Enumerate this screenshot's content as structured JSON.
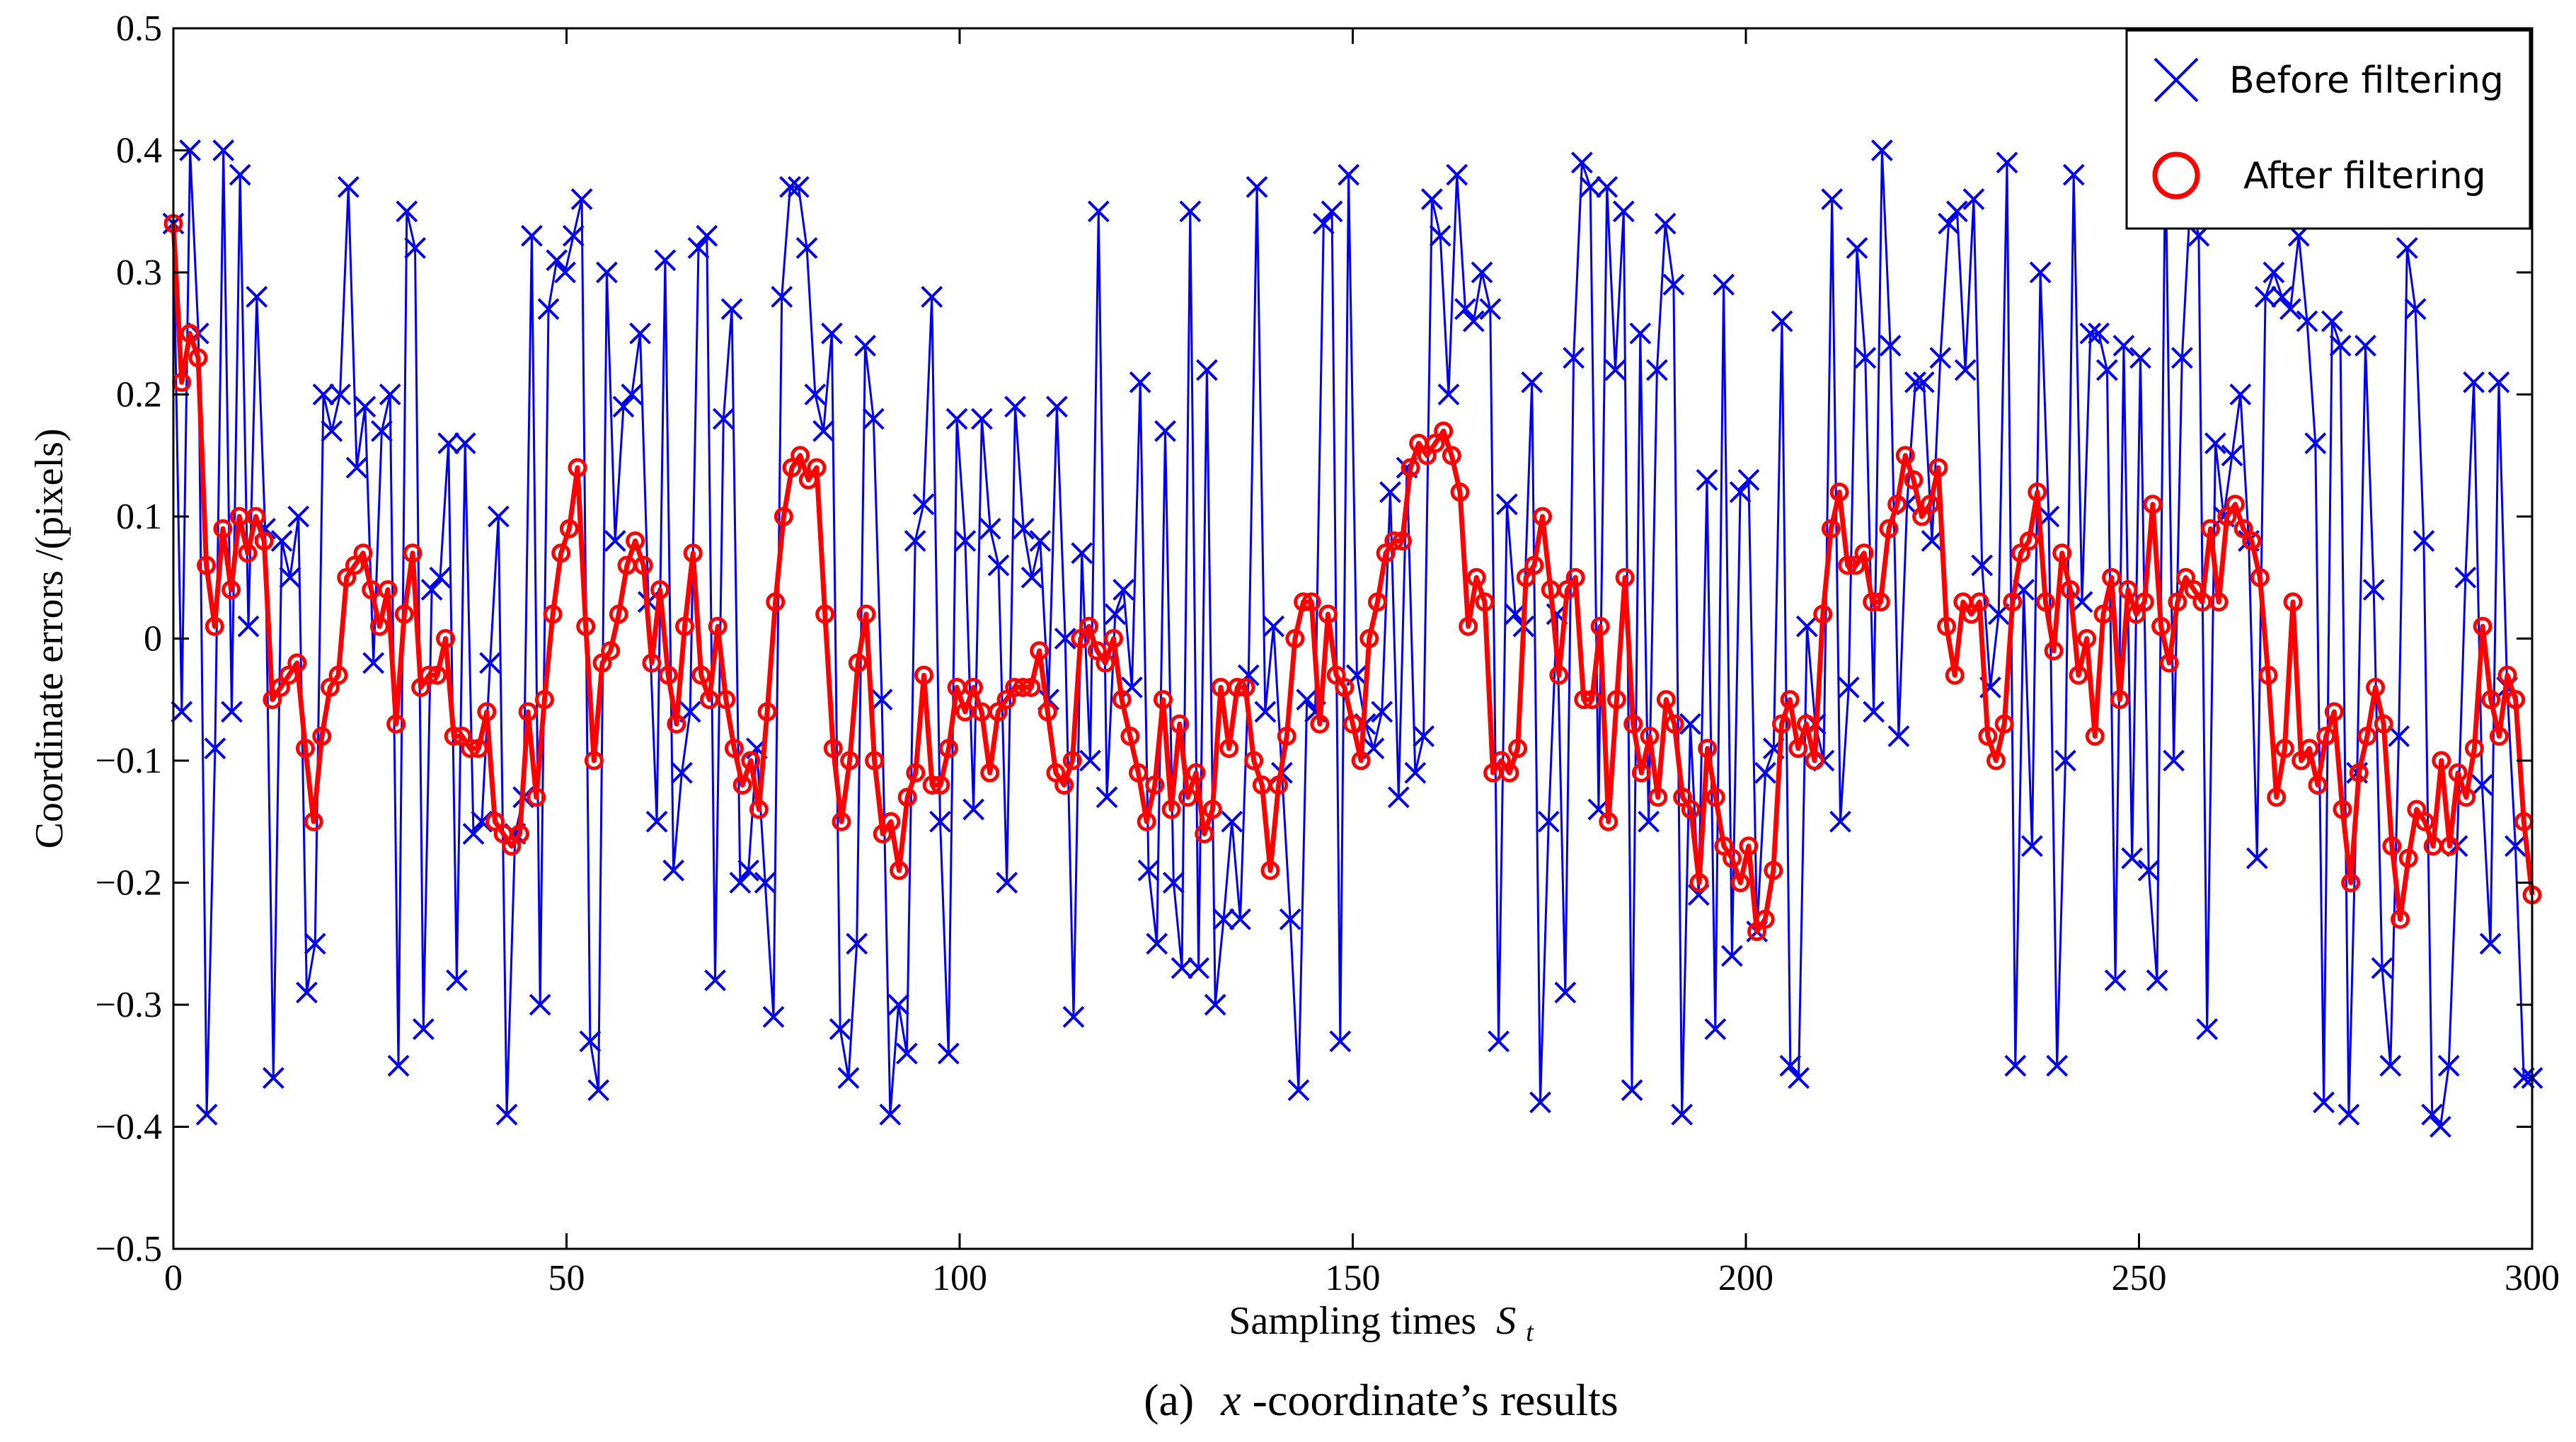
{
  "chart_data": {
    "type": "line",
    "title": "",
    "xlabel": "Sampling times",
    "xlabel_symbol": "S",
    "xlabel_subscript": "t",
    "ylabel": "Coordinate errors /(pixels)",
    "caption_prefix": "(a)",
    "caption_var": "x",
    "caption_rest": "-coordinate’s results",
    "xlim": [
      0,
      300
    ],
    "ylim": [
      -0.5,
      0.5
    ],
    "xticks": [
      0,
      50,
      100,
      150,
      200,
      250,
      300
    ],
    "xtick_labels": [
      "0",
      "50",
      "100",
      "150",
      "200",
      "250",
      "300"
    ],
    "yticks": [
      -0.5,
      -0.4,
      -0.3,
      -0.2,
      -0.1,
      0,
      0.1,
      0.2,
      0.3,
      0.4,
      0.5
    ],
    "ytick_labels": [
      "−0.5",
      "−0.4",
      "−0.3",
      "−0.2",
      "−0.1",
      "0",
      "0.1",
      "0.2",
      "0.3",
      "0.4",
      "0.5"
    ],
    "grid": false,
    "legend": "top-right",
    "series": [
      {
        "name": "Before filtering",
        "color": "#0000ee",
        "marker": "x",
        "values": [
          0.34,
          -0.06,
          0.4,
          0.25,
          -0.39,
          -0.09,
          0.4,
          -0.06,
          0.38,
          0.01,
          0.28,
          0.09,
          -0.36,
          0.08,
          0.05,
          0.1,
          -0.29,
          -0.25,
          0.2,
          0.17,
          0.2,
          0.37,
          0.14,
          0.19,
          -0.02,
          0.17,
          0.2,
          -0.35,
          0.35,
          0.32,
          -0.32,
          0.04,
          0.05,
          0.16,
          -0.28,
          0.16,
          -0.16,
          -0.15,
          -0.02,
          0.1,
          -0.39,
          -0.16,
          -0.13,
          0.33,
          -0.3,
          0.27,
          0.31,
          0.3,
          0.33,
          0.36,
          -0.33,
          -0.37,
          0.3,
          0.08,
          0.19,
          0.2,
          0.25,
          0.03,
          -0.15,
          0.31,
          -0.19,
          -0.11,
          -0.06,
          0.32,
          0.33,
          -0.28,
          0.18,
          0.27,
          -0.2,
          -0.19,
          -0.09,
          -0.2,
          -0.31,
          0.28,
          0.37,
          0.37,
          0.32,
          0.2,
          0.17,
          0.25,
          -0.32,
          -0.36,
          -0.25,
          0.24,
          0.18,
          -0.05,
          -0.39,
          -0.3,
          -0.34,
          0.08,
          0.11,
          0.28,
          -0.15,
          -0.34,
          0.18,
          0.08,
          -0.14,
          0.18,
          0.09,
          0.06,
          -0.2,
          0.19,
          0.09,
          0.05,
          0.08,
          -0.05,
          0.19,
          0.0,
          -0.31,
          0.07,
          -0.1,
          0.35,
          -0.13,
          0.02,
          0.04,
          -0.04,
          0.21,
          -0.19,
          -0.25,
          0.17,
          -0.2,
          -0.27,
          0.35,
          -0.27,
          0.22,
          -0.3,
          -0.23,
          -0.15,
          -0.23,
          -0.03,
          0.37,
          -0.06,
          0.01,
          -0.11,
          -0.23,
          -0.37,
          -0.05,
          -0.06,
          0.34,
          0.35,
          -0.33,
          0.38,
          -0.03,
          -0.07,
          -0.09,
          -0.06,
          0.12,
          -0.13,
          0.14,
          -0.11,
          -0.08,
          0.36,
          0.33,
          0.2,
          0.38,
          0.27,
          0.26,
          0.3,
          0.27,
          -0.33,
          0.11,
          0.02,
          0.01,
          0.21,
          -0.38,
          -0.15,
          0.02,
          -0.29,
          0.23,
          0.39,
          0.37,
          -0.14,
          0.37,
          0.22,
          0.35,
          -0.37,
          0.25,
          -0.15,
          0.22,
          0.34,
          0.29,
          -0.39,
          -0.07,
          -0.21,
          0.13,
          -0.32,
          0.29,
          -0.26,
          0.12,
          0.13,
          -0.24,
          -0.11,
          -0.09,
          0.26,
          -0.35,
          -0.36,
          0.01,
          -0.07,
          -0.1,
          0.36,
          -0.15,
          -0.04,
          0.32,
          0.23,
          -0.06,
          0.4,
          0.24,
          -0.08,
          0.11,
          0.21,
          0.21,
          0.08,
          0.23,
          0.34,
          0.35,
          0.22,
          0.36,
          0.06,
          -0.04,
          0.02,
          0.39,
          -0.35,
          0.04,
          -0.17,
          0.3,
          0.1,
          -0.35,
          -0.1,
          0.38,
          0.03,
          0.25,
          0.25,
          0.22,
          -0.28,
          0.24,
          -0.18,
          0.23,
          -0.19,
          -0.28,
          0.4,
          -0.1,
          0.23,
          0.36,
          0.33,
          -0.32,
          0.16,
          0.1,
          0.15,
          0.2,
          0.08,
          -0.18,
          0.28,
          0.3,
          0.28,
          0.27,
          0.33,
          0.26,
          0.16,
          -0.38,
          0.26,
          0.24,
          -0.39,
          -0.11,
          0.24,
          0.04,
          -0.27,
          -0.35,
          -0.08,
          0.32,
          0.27,
          0.08,
          -0.39,
          -0.4,
          -0.35,
          -0.17,
          0.05,
          0.21,
          -0.12,
          -0.25,
          0.21,
          -0.04,
          -0.17,
          -0.36,
          -0.36
        ]
      },
      {
        "name": "After filtering",
        "color": "#ff0000",
        "marker": "o",
        "values": [
          0.34,
          0.21,
          0.25,
          0.23,
          0.06,
          0.01,
          0.09,
          0.04,
          0.1,
          0.07,
          0.1,
          0.08,
          -0.05,
          -0.04,
          -0.03,
          -0.02,
          -0.09,
          -0.15,
          -0.08,
          -0.04,
          -0.03,
          0.05,
          0.06,
          0.07,
          0.04,
          0.01,
          0.04,
          -0.07,
          0.02,
          0.07,
          -0.04,
          -0.03,
          -0.03,
          0.0,
          -0.08,
          -0.08,
          -0.09,
          -0.09,
          -0.06,
          -0.15,
          -0.16,
          -0.17,
          -0.16,
          -0.06,
          -0.13,
          -0.05,
          0.02,
          0.07,
          0.09,
          0.14,
          0.01,
          -0.1,
          -0.02,
          -0.01,
          0.02,
          0.06,
          0.08,
          0.06,
          -0.02,
          0.04,
          -0.03,
          -0.07,
          0.01,
          0.07,
          -0.03,
          -0.05,
          0.01,
          -0.05,
          -0.09,
          -0.12,
          -0.1,
          -0.14,
          -0.06,
          0.03,
          0.1,
          0.14,
          0.15,
          0.13,
          0.14,
          0.02,
          -0.09,
          -0.15,
          -0.1,
          -0.02,
          0.02,
          -0.1,
          -0.16,
          -0.15,
          -0.19,
          -0.13,
          -0.11,
          -0.03,
          -0.12,
          -0.12,
          -0.09,
          -0.04,
          -0.06,
          -0.04,
          -0.06,
          -0.11,
          -0.06,
          -0.05,
          -0.04,
          -0.04,
          -0.04,
          -0.01,
          -0.06,
          -0.11,
          -0.12,
          -0.1,
          0.0,
          0.01,
          -0.01,
          -0.02,
          0.0,
          -0.05,
          -0.08,
          -0.11,
          -0.15,
          -0.12,
          -0.05,
          -0.14,
          -0.07,
          -0.13,
          -0.11,
          -0.16,
          -0.14,
          -0.04,
          -0.09,
          -0.04,
          -0.04,
          -0.1,
          -0.12,
          -0.19,
          -0.12,
          -0.08,
          0.0,
          0.03,
          0.03,
          -0.07,
          0.02,
          -0.03,
          -0.04,
          -0.07,
          -0.1,
          0.0,
          0.03,
          0.07,
          0.08,
          0.08,
          0.14,
          0.16,
          0.15,
          0.16,
          0.17,
          0.15,
          0.12,
          0.01,
          0.05,
          0.03,
          -0.11,
          -0.1,
          -0.11,
          -0.09,
          0.05,
          0.06,
          0.1,
          0.04,
          -0.03,
          0.04,
          0.05,
          -0.05,
          -0.05,
          0.01,
          -0.15,
          -0.05,
          0.05,
          -0.07,
          -0.11,
          -0.08,
          -0.13,
          -0.05,
          -0.07,
          -0.13,
          -0.14,
          -0.2,
          -0.09,
          -0.13,
          -0.17,
          -0.18,
          -0.2,
          -0.17,
          -0.24,
          -0.23,
          -0.19,
          -0.07,
          -0.05,
          -0.09,
          -0.07,
          -0.1,
          0.02,
          0.09,
          0.12,
          0.06,
          0.06,
          0.07,
          0.03,
          0.03,
          0.09,
          0.11,
          0.15,
          0.13,
          0.1,
          0.11,
          0.14,
          0.01,
          -0.03,
          0.03,
          0.02,
          0.03,
          -0.08,
          -0.1,
          -0.07,
          0.03,
          0.07,
          0.08,
          0.12,
          0.03,
          -0.01,
          0.07,
          0.04,
          -0.03,
          0.0,
          -0.08,
          0.02,
          0.05,
          -0.05,
          0.04,
          0.02,
          0.03,
          0.11,
          0.01,
          -0.02,
          0.03,
          0.05,
          0.04,
          0.03,
          0.09,
          0.03,
          0.1,
          0.11,
          0.09,
          0.08,
          0.05,
          -0.03,
          -0.13,
          -0.09,
          0.03,
          -0.1,
          -0.09,
          -0.12,
          -0.08,
          -0.06,
          -0.14,
          -0.2,
          -0.11,
          -0.08,
          -0.04,
          -0.07,
          -0.17,
          -0.23,
          -0.18,
          -0.14,
          -0.15,
          -0.17,
          -0.1,
          -0.17,
          -0.11,
          -0.13,
          -0.09,
          0.01,
          -0.05,
          -0.08,
          -0.03,
          -0.05,
          -0.15,
          -0.21
        ]
      }
    ]
  }
}
